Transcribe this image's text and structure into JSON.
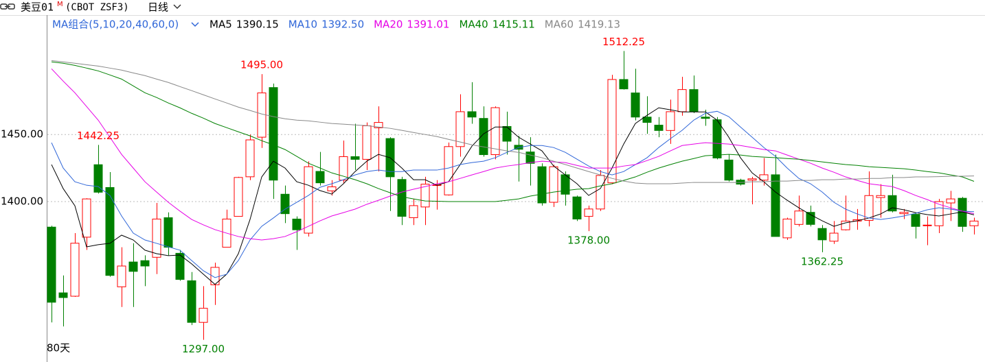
{
  "header": {
    "symbol": "美豆01",
    "flag": "M",
    "contract": "(CBOT ZSF3)",
    "period": "日线"
  },
  "chart_data": {
    "type": "candlestick",
    "ma_label": "MA组合(5,10,20,40,60,0)",
    "span_label": "80天",
    "up_color": "#ff0000",
    "down_color": "#008000",
    "ylim": [
      1282,
      1539
    ],
    "yticks": [
      {
        "value": 1450,
        "label": "1450.00"
      },
      {
        "value": 1400,
        "label": "1400.00"
      }
    ],
    "grid": true,
    "ohlc": {
      "open": [
        1381,
        1332,
        1329.5,
        1373.5,
        1427.5,
        1410.5,
        1336.5,
        1355,
        1356,
        1358.5,
        1388,
        1361.5,
        1341,
        1310,
        1338,
        1366,
        1389,
        1418.5,
        1448,
        1485,
        1405.5,
        1387,
        1376.5,
        1422.5,
        1408,
        1416,
        1433.5,
        1431.5,
        1455,
        1447,
        1416.5,
        1388,
        1396,
        1412,
        1405,
        1441,
        1467,
        1462,
        1435,
        1456,
        1442,
        1437,
        1426,
        1399.5,
        1420,
        1403.5,
        1389,
        1394.5,
        1414,
        1491,
        1481,
        1463,
        1457,
        1453,
        1467,
        1483.5,
        1463,
        1461,
        1431,
        1416,
        1416,
        1416,
        1420,
        1373,
        1383,
        1392,
        1380,
        1370.5,
        1379,
        1385.5,
        1386,
        1403,
        1404.5,
        1391,
        1390.5,
        1382,
        1382,
        1399,
        1402.5,
        1382
      ],
      "high": [
        1382,
        1345,
        1376.5,
        1402.5,
        1442.25,
        1422,
        1366,
        1369,
        1360,
        1399,
        1392,
        1364,
        1347.5,
        1337,
        1354.5,
        1394,
        1418.5,
        1450,
        1495,
        1488,
        1412,
        1389,
        1430,
        1437,
        1416,
        1445.5,
        1458,
        1459,
        1471,
        1448,
        1418.5,
        1402,
        1418.5,
        1416,
        1444,
        1480,
        1489,
        1471,
        1471,
        1467,
        1449,
        1448,
        1428.5,
        1427.5,
        1422.5,
        1404.5,
        1397,
        1423.5,
        1494.5,
        1512.25,
        1499,
        1478.5,
        1463,
        1476,
        1493,
        1494,
        1468.5,
        1463,
        1435,
        1417,
        1418.5,
        1432.5,
        1435,
        1388,
        1404.5,
        1397,
        1382.5,
        1385.5,
        1404.5,
        1394.5,
        1422.5,
        1413,
        1420,
        1394.5,
        1392,
        1389,
        1402,
        1408,
        1403.5,
        1388
      ],
      "low": [
        1310,
        1307,
        1329,
        1364,
        1406,
        1344,
        1321.5,
        1321.5,
        1337,
        1346,
        1360,
        1341,
        1308,
        1297,
        1323,
        1366,
        1389,
        1416,
        1440,
        1402,
        1384,
        1364,
        1374,
        1412,
        1404.5,
        1414,
        1423.5,
        1423.5,
        1422.5,
        1393,
        1382.5,
        1382.5,
        1382.5,
        1394,
        1404.5,
        1433.5,
        1458,
        1433.5,
        1431.5,
        1435,
        1415,
        1412,
        1397,
        1396,
        1397,
        1385.5,
        1378,
        1393,
        1413,
        1483.5,
        1460.5,
        1450.5,
        1448,
        1443,
        1464,
        1466,
        1456.5,
        1431.5,
        1415,
        1412,
        1398,
        1412,
        1374,
        1371.5,
        1381.5,
        1381.5,
        1362.25,
        1368.5,
        1378.5,
        1379,
        1381.5,
        1388,
        1392,
        1387,
        1372.5,
        1367.5,
        1376.5,
        1385.5,
        1377.5,
        1375.5
      ],
      "close": [
        1325,
        1328.5,
        1369,
        1402,
        1407,
        1345,
        1352,
        1348,
        1352,
        1387,
        1366,
        1342,
        1310,
        1320.5,
        1351,
        1387,
        1418,
        1446,
        1481,
        1416,
        1391,
        1379,
        1426,
        1414,
        1411,
        1433.5,
        1431.5,
        1456.5,
        1459,
        1418.5,
        1389,
        1397,
        1413,
        1412.5,
        1441,
        1467,
        1463,
        1435,
        1470,
        1445,
        1439,
        1428.5,
        1399,
        1426,
        1405.5,
        1387,
        1394.5,
        1419.5,
        1491,
        1484,
        1463,
        1459,
        1453,
        1467,
        1483.5,
        1467,
        1462,
        1432.5,
        1416,
        1413,
        1417,
        1420,
        1374,
        1387,
        1393,
        1383,
        1371.5,
        1376.5,
        1385.5,
        1386.5,
        1404.5,
        1404.5,
        1393,
        1392,
        1381.5,
        1382.5,
        1400,
        1402,
        1381.5,
        1385.5
      ]
    },
    "series": [
      {
        "name": "MA5",
        "color": "#000000",
        "last_label": "1390.15",
        "values": [
          1427.6,
          1409.7,
          1396.9,
          1366.3,
          1367.9,
          1368.9,
          1375,
          1371.4,
          1363.8,
          1361.2,
          1359.7,
          1360.2,
          1353.6,
          1345.9,
          1338.3,
          1345.9,
          1361.2,
          1386.7,
          1418.4,
          1430.1,
          1425,
          1414.8,
          1412.2,
          1408.2,
          1405.6,
          1413.3,
          1422.4,
          1430.1,
          1435.2,
          1432.7,
          1425,
          1416.3,
          1416.3,
          1412.2,
          1414.8,
          1427.6,
          1441.3,
          1450.5,
          1455.6,
          1455.6,
          1448,
          1442.9,
          1437.8,
          1426.5,
          1419.9,
          1413.3,
          1404.6,
          1409.7,
          1425,
          1442.9,
          1458.2,
          1464.3,
          1469.9,
          1468.4,
          1466.8,
          1466.8,
          1466.8,
          1460.7,
          1448,
          1432.7,
          1421.4,
          1414.8,
          1407.1,
          1401,
          1395.4,
          1390.3,
          1385.7,
          1381.6,
          1384.2,
          1385.7,
          1387.8,
          1390.8,
          1395.4,
          1393.9,
          1391.8,
          1390.3,
          1389.3,
          1390.8,
          1392.3,
          1390.15
        ]
      },
      {
        "name": "MA10",
        "color": "#2f66d8",
        "last_label": "1392.50",
        "values": [
          1443.9,
          1425,
          1414.8,
          1412.2,
          1411.2,
          1404.6,
          1389.3,
          1376.5,
          1371.4,
          1368.9,
          1366.3,
          1363.8,
          1356.1,
          1348.5,
          1343.4,
          1345.9,
          1356.1,
          1371.4,
          1381.6,
          1387.8,
          1394.4,
          1399.5,
          1404.6,
          1410.7,
          1413.3,
          1416.3,
          1419.9,
          1422.4,
          1423.5,
          1422.4,
          1422.4,
          1423.5,
          1423.5,
          1423.5,
          1425,
          1427.6,
          1429.1,
          1430.1,
          1432.7,
          1436.7,
          1440.3,
          1441.8,
          1441.8,
          1440.3,
          1436.7,
          1431.6,
          1426.5,
          1422.4,
          1419.9,
          1422.4,
          1427.6,
          1432.7,
          1440.3,
          1446.9,
          1453.1,
          1460.7,
          1465.8,
          1467.3,
          1463.3,
          1455.6,
          1448,
          1440.3,
          1433.7,
          1425,
          1417.3,
          1413.3,
          1407.1,
          1399.5,
          1394.4,
          1390.8,
          1387.8,
          1386.7,
          1387.8,
          1389.3,
          1391.3,
          1393.9,
          1395.4,
          1394.4,
          1392.9,
          1392.5
        ]
      },
      {
        "name": "MA20",
        "color": "#e600e6",
        "last_label": "1391.01",
        "values": [
          1499,
          1489.8,
          1481.1,
          1470.9,
          1460.7,
          1448,
          1435.2,
          1425,
          1414.8,
          1407.1,
          1399.5,
          1392.9,
          1386.7,
          1382.7,
          1379.1,
          1376.5,
          1374,
          1372.4,
          1371.4,
          1372.4,
          1374,
          1377.6,
          1381.6,
          1385.7,
          1389.3,
          1391.8,
          1394.4,
          1398,
          1401,
          1404.1,
          1407.1,
          1409.2,
          1411.2,
          1413.3,
          1414.8,
          1417.3,
          1419.9,
          1422.4,
          1425,
          1426.5,
          1427.6,
          1429.1,
          1430.1,
          1429.6,
          1429.1,
          1427,
          1425,
          1425,
          1425,
          1426.5,
          1427.6,
          1430.6,
          1433.7,
          1437.8,
          1441.8,
          1442.9,
          1443.9,
          1443.4,
          1442.9,
          1441.8,
          1440.3,
          1438.8,
          1437.8,
          1434.7,
          1431.6,
          1428.6,
          1425,
          1421.9,
          1418.4,
          1415.8,
          1413.3,
          1412.2,
          1411.2,
          1408.2,
          1404.6,
          1401.5,
          1398,
          1395.4,
          1392.9,
          1391.01
        ]
      },
      {
        "name": "MA40",
        "color": "#008000",
        "last_label": "1415.11",
        "values": [
          1504.1,
          1503.1,
          1501.5,
          1499.5,
          1497.4,
          1494.4,
          1491.3,
          1486.2,
          1481.1,
          1477.6,
          1473.5,
          1469.9,
          1465.8,
          1462.2,
          1458.2,
          1455.1,
          1452,
          1449,
          1445.4,
          1442.3,
          1438.8,
          1433.7,
          1428.6,
          1425,
          1421.4,
          1418.9,
          1416.3,
          1413.3,
          1409.7,
          1406.6,
          1403.6,
          1402,
          1400.5,
          1400.3,
          1400,
          1400,
          1400,
          1400,
          1400,
          1401,
          1402,
          1404.1,
          1405.6,
          1407.1,
          1408.2,
          1409.2,
          1409.7,
          1411.7,
          1413.3,
          1415.8,
          1418.4,
          1421.9,
          1425,
          1427.6,
          1430.1,
          1432.1,
          1434.2,
          1434.7,
          1435.2,
          1434.7,
          1433.7,
          1433.2,
          1432.7,
          1432.1,
          1431.6,
          1430.6,
          1429.6,
          1428.6,
          1427.6,
          1427,
          1426,
          1425.5,
          1425,
          1424.5,
          1423.5,
          1422.4,
          1421.4,
          1419.9,
          1418.4,
          1415.11
        ]
      },
      {
        "name": "MA60",
        "color": "#888888",
        "last_label": "1419.13",
        "values": [
          1505.1,
          1504.1,
          1503.1,
          1502,
          1501,
          1499.5,
          1498,
          1495.9,
          1493.9,
          1491.3,
          1488.8,
          1485.7,
          1482.7,
          1479.6,
          1476.5,
          1473.5,
          1470.4,
          1467.9,
          1465.3,
          1463.3,
          1461.7,
          1460.7,
          1460.2,
          1459.2,
          1458.2,
          1457.7,
          1457.1,
          1456.6,
          1455.6,
          1454.6,
          1453.1,
          1451.5,
          1450,
          1448.5,
          1446.4,
          1444.4,
          1442.3,
          1440.8,
          1439.3,
          1437.8,
          1436.7,
          1434.7,
          1432.7,
          1430.1,
          1427.6,
          1425,
          1422.4,
          1419.9,
          1417.3,
          1415.3,
          1413.8,
          1413.3,
          1413.3,
          1413.3,
          1413.8,
          1414.3,
          1414.3,
          1414.3,
          1414.3,
          1414.3,
          1414.8,
          1414.8,
          1415.3,
          1415.3,
          1415.8,
          1415.8,
          1416.3,
          1416.3,
          1416.8,
          1416.8,
          1417.3,
          1417.3,
          1417.9,
          1417.9,
          1418.4,
          1418.4,
          1418.6,
          1418.9,
          1418.9,
          1419.13
        ]
      }
    ],
    "annotations": [
      {
        "label": "1442.25",
        "value": 1442.25
      },
      {
        "label": "1495.00",
        "value": 1495
      },
      {
        "label": "1512.25",
        "value": 1512.25
      },
      {
        "label": "1378.00",
        "value": 1378
      },
      {
        "label": "1362.25",
        "value": 1362.25
      },
      {
        "label": "1297.00",
        "value": 1297
      }
    ]
  }
}
